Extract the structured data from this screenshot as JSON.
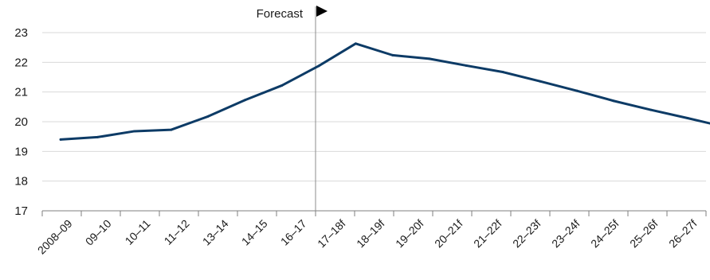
{
  "chart_data": {
    "type": "line",
    "categories": [
      "2008–09",
      "09–10",
      "10–11",
      "11–12",
      "13–14",
      "14–15",
      "16–17",
      "17–18f",
      "18–19f",
      "19–20f",
      "20–21f",
      "21–22f",
      "22–23f",
      "23–24f",
      "24–25f",
      "25–26f",
      "26–27f"
    ],
    "series": [
      {
        "x": [
          0,
          1,
          2,
          3,
          4,
          5,
          6,
          7,
          8,
          9,
          10,
          11,
          12,
          13,
          14,
          15,
          16,
          17,
          18
        ],
        "values": [
          19.4,
          19.48,
          19.68,
          19.73,
          20.18,
          20.73,
          21.22,
          21.88,
          22.63,
          22.24,
          22.12,
          21.89,
          21.67,
          21.36,
          21.04,
          20.7,
          20.4,
          20.12,
          19.83
        ]
      }
    ],
    "ylim": [
      17,
      23
    ],
    "yticks": [
      17,
      18,
      19,
      20,
      21,
      22,
      23
    ],
    "grid": true,
    "annotation": {
      "text": "Forecast",
      "marker": "right-triangle"
    },
    "line_color": "#0d3b66",
    "grid_color": "#d9d9d9"
  }
}
